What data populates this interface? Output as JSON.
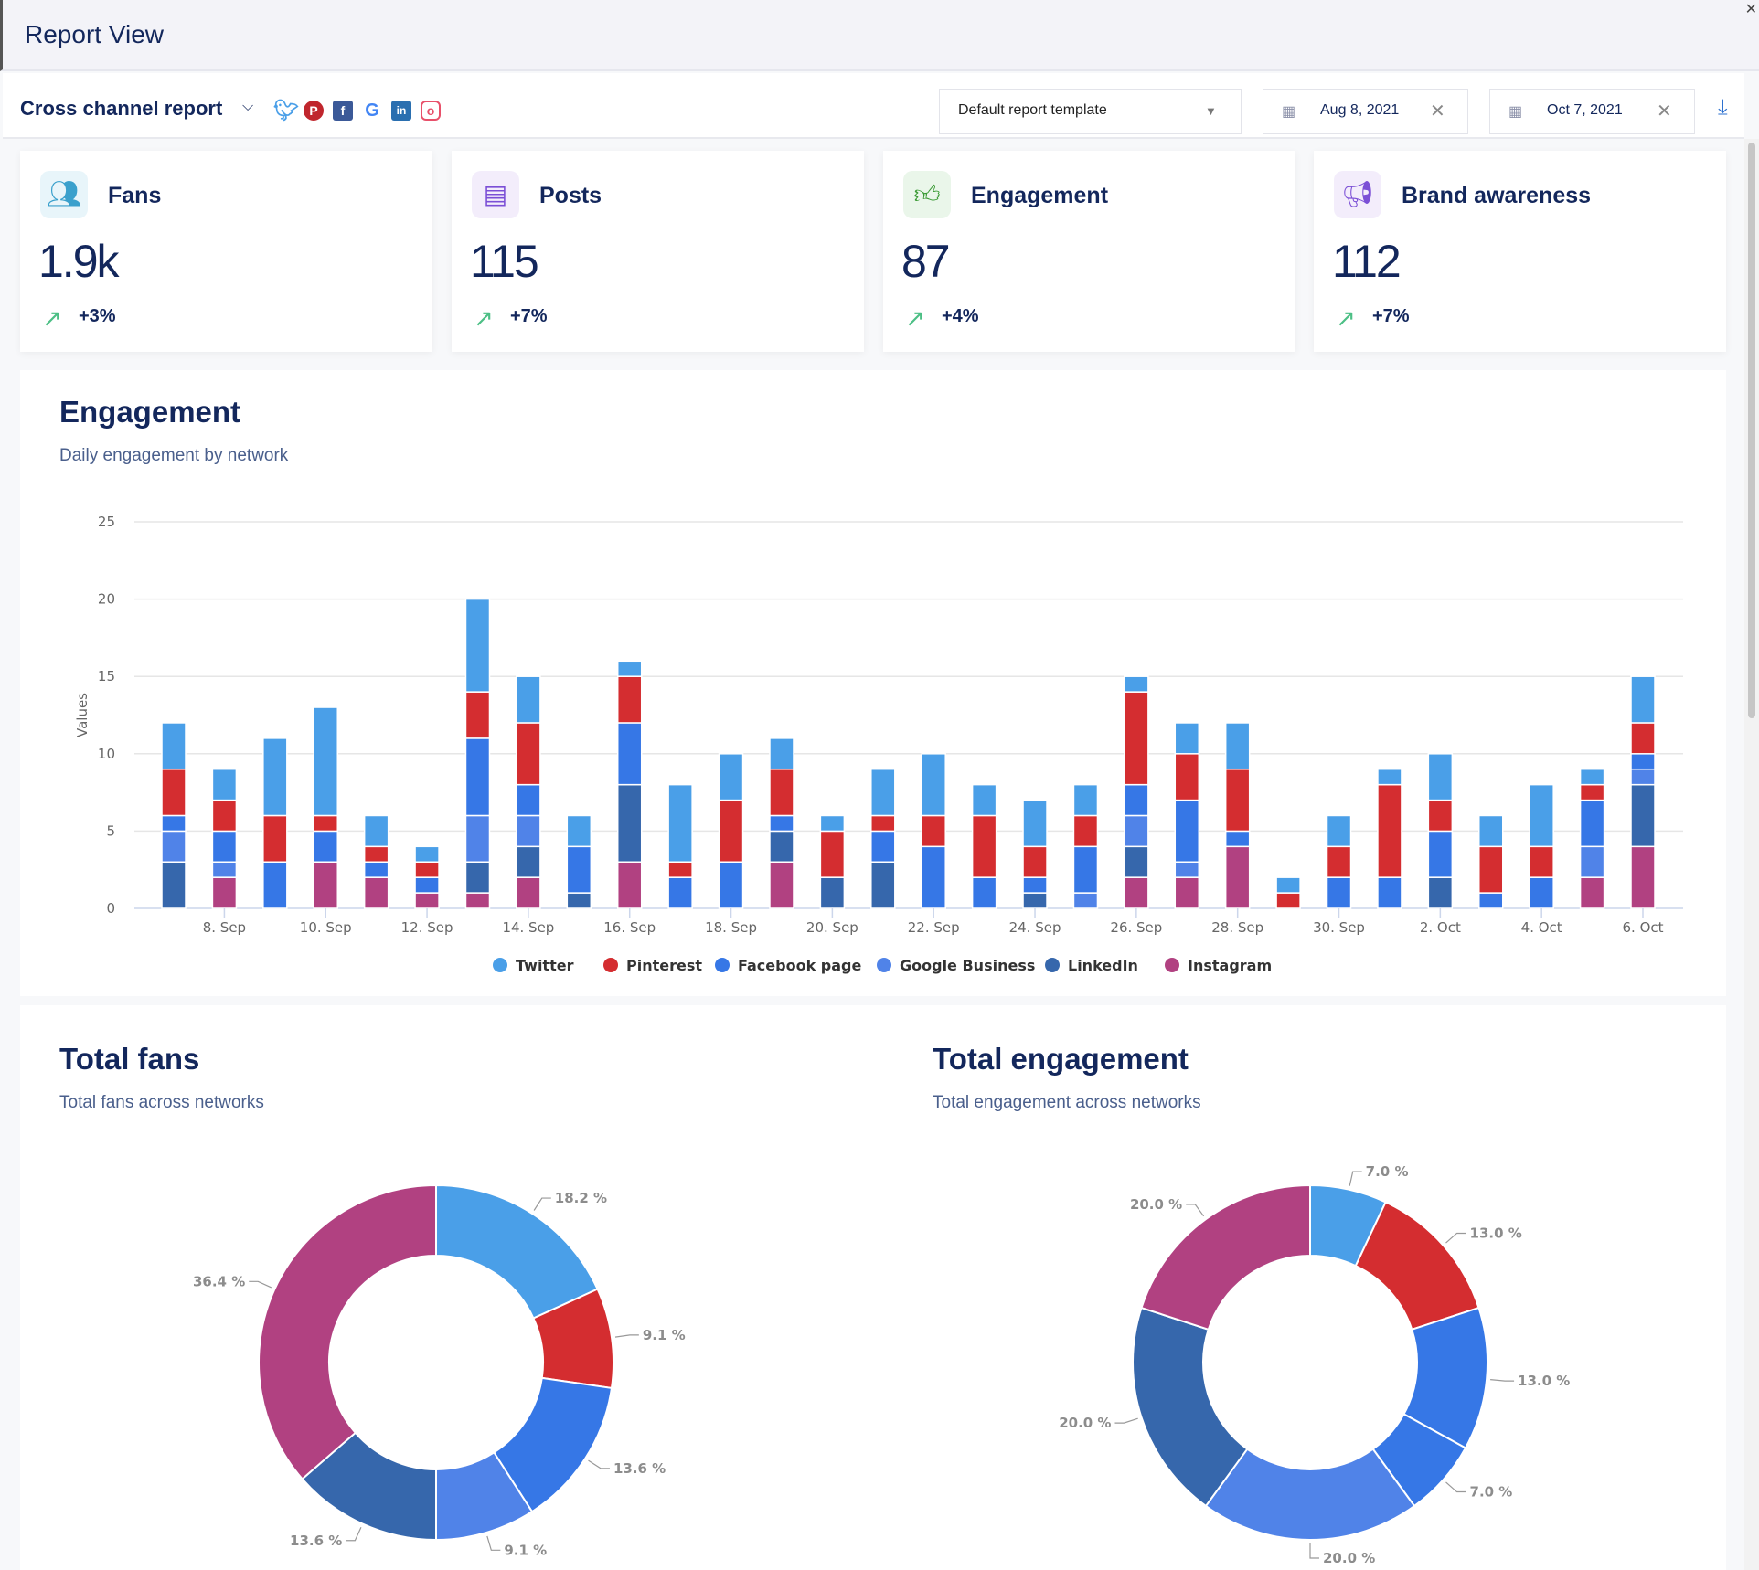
{
  "window": {
    "title": "Report View"
  },
  "toolbar": {
    "report_name": "Cross channel report",
    "networks": [
      "twitter-icon",
      "pinterest-icon",
      "facebook-icon",
      "google-icon",
      "linkedin-icon",
      "instagram-icon"
    ],
    "template": "Default report template",
    "start_date": "Aug 8, 2021",
    "end_date": "Oct 7, 2021"
  },
  "cards": [
    {
      "label": "Fans",
      "value": "1.9k",
      "change": "+3%",
      "icon": "users-icon",
      "bg": "#e8f5fa",
      "fg": "#3aa0cc"
    },
    {
      "label": "Posts",
      "value": "115",
      "change": "+7%",
      "icon": "document-icon",
      "bg": "#f3edfb",
      "fg": "#7b4fd6"
    },
    {
      "label": "Engagement",
      "value": "87",
      "change": "+4%",
      "icon": "thumbs-up-icon",
      "bg": "#eaf6ea",
      "fg": "#3a9a34"
    },
    {
      "label": "Brand awareness",
      "value": "112",
      "change": "+7%",
      "icon": "megaphone-icon",
      "bg": "#f3edfb",
      "fg": "#7b4fd6"
    }
  ],
  "engagement": {
    "title": "Engagement",
    "subtitle": "Daily engagement by network"
  },
  "fans": {
    "title": "Total fans",
    "subtitle": "Total fans across networks"
  },
  "total_engagement": {
    "title": "Total engagement",
    "subtitle": "Total engagement across networks"
  },
  "chart_data": [
    {
      "type": "bar",
      "stacked": true,
      "ylabel": "Values",
      "ylim": [
        0,
        25
      ],
      "yticks": [
        0,
        5,
        10,
        15,
        20,
        25
      ],
      "grid": true,
      "legend": "bottom",
      "categories": [
        "7. Sep",
        "8. Sep",
        "9. Sep",
        "10. Sep",
        "11. Sep",
        "12. Sep",
        "13. Sep",
        "14. Sep",
        "15. Sep",
        "16. Sep",
        "17. Sep",
        "18. Sep",
        "19. Sep",
        "20. Sep",
        "21. Sep",
        "22. Sep",
        "23. Sep",
        "24. Sep",
        "25. Sep",
        "26. Sep",
        "27. Sep",
        "28. Sep",
        "29. Sep",
        "30. Sep",
        "1. Oct",
        "2. Oct",
        "3. Oct",
        "4. Oct",
        "5. Oct",
        "6. Oct"
      ],
      "xtick_labels": [
        "8. Sep",
        "10. Sep",
        "12. Sep",
        "14. Sep",
        "16. Sep",
        "18. Sep",
        "20. Sep",
        "22. Sep",
        "24. Sep",
        "26. Sep",
        "28. Sep",
        "30. Sep",
        "2. Oct",
        "4. Oct",
        "6. Oct"
      ],
      "series": [
        {
          "name": "Twitter",
          "color": "#4a9fe8",
          "values": [
            3,
            2,
            5,
            7,
            2,
            1,
            6,
            3,
            2,
            1,
            5,
            3,
            2,
            1,
            3,
            4,
            2,
            3,
            2,
            1,
            2,
            3,
            1,
            2,
            1,
            3,
            2,
            4,
            1,
            3
          ]
        },
        {
          "name": "Pinterest",
          "color": "#d42d30",
          "values": [
            3,
            2,
            3,
            1,
            1,
            1,
            3,
            4,
            0,
            3,
            1,
            4,
            3,
            3,
            1,
            2,
            4,
            2,
            2,
            6,
            3,
            4,
            1,
            2,
            6,
            2,
            3,
            2,
            1,
            2
          ]
        },
        {
          "name": "Facebook page",
          "color": "#3677e6",
          "values": [
            1,
            2,
            3,
            2,
            1,
            1,
            5,
            2,
            3,
            4,
            2,
            3,
            1,
            0,
            2,
            4,
            2,
            1,
            3,
            2,
            4,
            1,
            0,
            2,
            2,
            3,
            1,
            2,
            3,
            1
          ]
        },
        {
          "name": "Google Business",
          "color": "#5083e8",
          "values": [
            2,
            1,
            0,
            0,
            0,
            0,
            3,
            2,
            0,
            0,
            0,
            0,
            0,
            0,
            0,
            0,
            0,
            0,
            1,
            2,
            1,
            0,
            0,
            0,
            0,
            0,
            0,
            0,
            2,
            1
          ]
        },
        {
          "name": "LinkedIn",
          "color": "#3667ac",
          "values": [
            3,
            0,
            0,
            0,
            0,
            0,
            2,
            2,
            1,
            5,
            0,
            0,
            2,
            2,
            3,
            0,
            0,
            1,
            0,
            2,
            0,
            0,
            0,
            0,
            0,
            2,
            0,
            0,
            0,
            4
          ]
        },
        {
          "name": "Instagram",
          "color": "#b14181",
          "values": [
            0,
            2,
            0,
            3,
            2,
            1,
            1,
            2,
            0,
            3,
            0,
            0,
            3,
            0,
            0,
            0,
            0,
            0,
            0,
            2,
            2,
            4,
            0,
            0,
            0,
            0,
            0,
            0,
            2,
            4
          ]
        }
      ]
    },
    {
      "type": "pie",
      "donut": true,
      "title": "Total fans",
      "slices": [
        {
          "name": "Twitter",
          "value": 18.2,
          "label": "18.2 %",
          "color": "#4a9fe8"
        },
        {
          "name": "Pinterest",
          "value": 9.1,
          "label": "9.1 %",
          "color": "#d42d30"
        },
        {
          "name": "Facebook page",
          "value": 13.6,
          "label": "13.6 %",
          "color": "#3677e6"
        },
        {
          "name": "Google Business",
          "value": 9.1,
          "label": "9.1 %",
          "color": "#5083e8"
        },
        {
          "name": "LinkedIn",
          "value": 13.6,
          "label": "13.6 %",
          "color": "#3667ac"
        },
        {
          "name": "Instagram",
          "value": 36.4,
          "label": "36.4 %",
          "color": "#b14181"
        }
      ]
    },
    {
      "type": "pie",
      "donut": true,
      "title": "Total engagement",
      "slices": [
        {
          "value": 7.0,
          "label": "7.0 %",
          "color": "#4a9fe8"
        },
        {
          "value": 13.0,
          "label": "13.0 %",
          "color": "#d42d30"
        },
        {
          "value": 13.0,
          "label": "13.0 %",
          "color": "#3677e6"
        },
        {
          "value": 7.0,
          "label": "7.0 %",
          "color": "#3677e6"
        },
        {
          "value": 20.0,
          "label": "20.0 %",
          "color": "#5083e8"
        },
        {
          "value": 20.0,
          "label": "20.0 %",
          "color": "#3667ac"
        },
        {
          "value": 20.0,
          "label": "20.0 %",
          "color": "#b14181"
        }
      ]
    }
  ]
}
